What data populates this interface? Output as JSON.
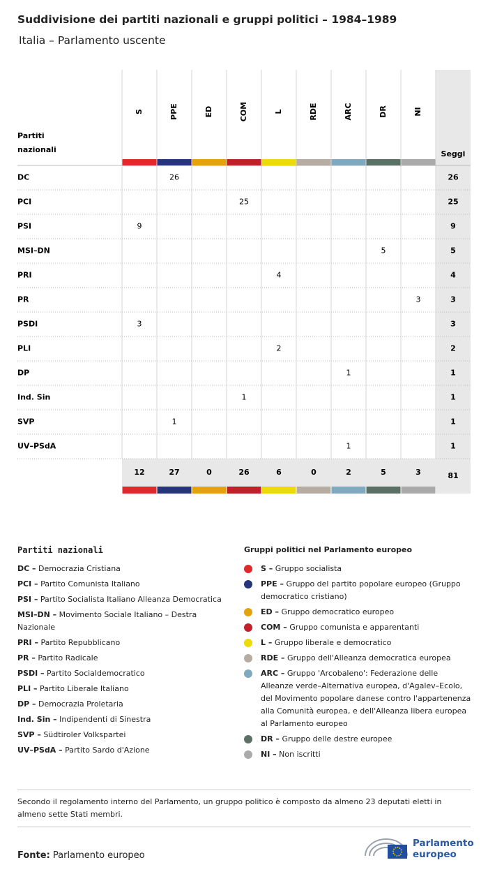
{
  "header": {
    "title": "Suddivisione dei partiti nazionali e gruppi politici – 1984–1989",
    "subtitle": "Italia – Parlamento uscente"
  },
  "table": {
    "corner": "Partiti nazionali",
    "seats_header": "Seggi",
    "groups": [
      {
        "name": "S",
        "color": "#e1282b"
      },
      {
        "name": "PPE",
        "color": "#263479"
      },
      {
        "name": "ED",
        "color": "#e3a30f"
      },
      {
        "name": "COM",
        "color": "#c1202a"
      },
      {
        "name": "L",
        "color": "#ecda0c"
      },
      {
        "name": "RDE",
        "color": "#b6aca2"
      },
      {
        "name": "ARC",
        "color": "#80a9bf"
      },
      {
        "name": "DR",
        "color": "#5b7165"
      },
      {
        "name": "NI",
        "color": "#aaaaaa"
      }
    ],
    "rows": [
      {
        "party": "DC",
        "cells": [
          null,
          26,
          null,
          null,
          null,
          null,
          null,
          null,
          null
        ],
        "total": 26
      },
      {
        "party": "PCI",
        "cells": [
          null,
          null,
          null,
          25,
          null,
          null,
          null,
          null,
          null
        ],
        "total": 25
      },
      {
        "party": "PSI",
        "cells": [
          9,
          null,
          null,
          null,
          null,
          null,
          null,
          null,
          null
        ],
        "total": 9
      },
      {
        "party": "MSI–DN",
        "cells": [
          null,
          null,
          null,
          null,
          null,
          null,
          null,
          5,
          null
        ],
        "total": 5
      },
      {
        "party": "PRI",
        "cells": [
          null,
          null,
          null,
          null,
          4,
          null,
          null,
          null,
          null
        ],
        "total": 4
      },
      {
        "party": "PR",
        "cells": [
          null,
          null,
          null,
          null,
          null,
          null,
          null,
          null,
          3
        ],
        "total": 3
      },
      {
        "party": "PSDI",
        "cells": [
          3,
          null,
          null,
          null,
          null,
          null,
          null,
          null,
          null
        ],
        "total": 3
      },
      {
        "party": "PLI",
        "cells": [
          null,
          null,
          null,
          null,
          2,
          null,
          null,
          null,
          null
        ],
        "total": 2
      },
      {
        "party": "DP",
        "cells": [
          null,
          null,
          null,
          null,
          null,
          null,
          1,
          null,
          null
        ],
        "total": 1
      },
      {
        "party": "Ind. Sin",
        "cells": [
          null,
          null,
          null,
          1,
          null,
          null,
          null,
          null,
          null
        ],
        "total": 1
      },
      {
        "party": "SVP",
        "cells": [
          null,
          1,
          null,
          null,
          null,
          null,
          null,
          null,
          null
        ],
        "total": 1
      },
      {
        "party": "UV–PSdA",
        "cells": [
          null,
          null,
          null,
          null,
          null,
          null,
          1,
          null,
          null
        ],
        "total": 1
      }
    ],
    "column_totals": [
      12,
      27,
      0,
      26,
      6,
      0,
      2,
      5,
      3
    ],
    "grand_total": 81
  },
  "legend_parties": {
    "title": "Partiti nazionali",
    "items": [
      {
        "abbr": "DC –",
        "name": "Democrazia Cristiana"
      },
      {
        "abbr": "PCI –",
        "name": "Partito Comunista Italiano"
      },
      {
        "abbr": "PSI –",
        "name": "Partito Socialista Italiano Alleanza Democratica"
      },
      {
        "abbr": "MSI–DN –",
        "name": "Movimento Sociale Italiano – Destra Nazionale"
      },
      {
        "abbr": "PRI –",
        "name": "Partito Repubblicano"
      },
      {
        "abbr": "PR –",
        "name": "Partito Radicale"
      },
      {
        "abbr": "PSDI –",
        "name": "Partito Socialdemocratico"
      },
      {
        "abbr": "PLI –",
        "name": "Partito Liberale Italiano"
      },
      {
        "abbr": "DP –",
        "name": "Democrazia Proletaria"
      },
      {
        "abbr": "Ind. Sin –",
        "name": "Indipendenti di Sinestra"
      },
      {
        "abbr": "SVP –",
        "name": "Südtiroler Volkspartei"
      },
      {
        "abbr": "UV–PSdA –",
        "name": "Partito Sardo d'Azione"
      }
    ]
  },
  "legend_groups": {
    "title": "Gruppi politici nel Parlamento europeo",
    "items": [
      {
        "abbr": "S –",
        "name": "Gruppo socialista",
        "color": "#e1282b"
      },
      {
        "abbr": "PPE –",
        "name": "Gruppo del partito popolare europeo (Gruppo democratico cristiano)",
        "color": "#263479"
      },
      {
        "abbr": "ED –",
        "name": "Gruppo democratico europeo",
        "color": "#e3a30f"
      },
      {
        "abbr": "COM –",
        "name": "Gruppo comunista e apparentanti",
        "color": "#c1202a"
      },
      {
        "abbr": "L –",
        "name": "Gruppo liberale e democratico",
        "color": "#ecda0c"
      },
      {
        "abbr": "RDE –",
        "name": "Gruppo dell'Alleanza democratica europea",
        "color": "#b6aca2"
      },
      {
        "abbr": "ARC –",
        "name": "Gruppo 'Arcobaleno': Federazione delle Alleanze verde–Alternativa europea, d'Agalev–Ecolo, del Movimento popolare danese contro l'appartenenza alla Comunità europea, e dell'Alleanza libera europea al Parlamento europeo",
        "color": "#80a9bf"
      },
      {
        "abbr": "DR –",
        "name": "Gruppo delle destre europee",
        "color": "#5b7165"
      },
      {
        "abbr": "NI –",
        "name": "Non iscritti",
        "color": "#aaaaaa"
      }
    ]
  },
  "note": "Secondo il regolamento interno del Parlamento, un gruppo politico è composto da almeno 23 deputati eletti in almeno sette Stati membri.",
  "source": {
    "label": "Fonte:",
    "text": "Parlamento europeo"
  },
  "logo": {
    "line1": "Parlamento",
    "line2": "europeo"
  }
}
